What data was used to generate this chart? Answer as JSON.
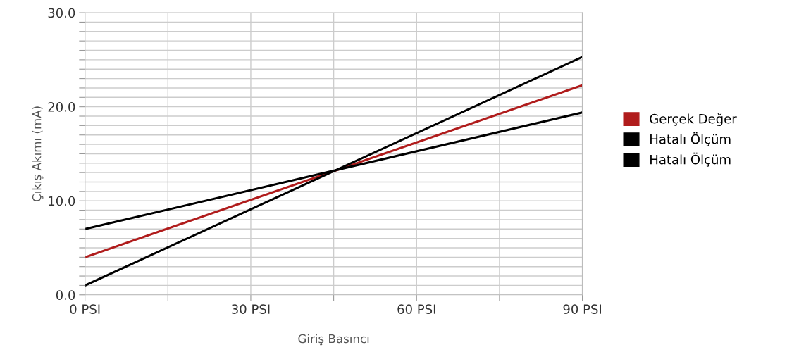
{
  "chart_data": {
    "type": "line",
    "xlabel": "Giriş Basıncı",
    "ylabel": "Çıkış Akımı (mA)",
    "x": [
      0,
      90
    ],
    "series": [
      {
        "name": "Gerçek Değer",
        "color": "#b01c1c",
        "values": [
          4.0,
          22.3
        ]
      },
      {
        "name": "Hatalı Ölçüm",
        "color": "#000000",
        "values": [
          7.0,
          19.4
        ]
      },
      {
        "name": "Hatalı Ölçüm",
        "color": "#000000",
        "values": [
          1.0,
          25.3
        ]
      }
    ],
    "xlim": [
      0,
      90
    ],
    "xticks": [
      {
        "value": 0,
        "label": "0 PSI"
      },
      {
        "value": 15,
        "label": null
      },
      {
        "value": 30,
        "label": "30 PSI"
      },
      {
        "value": 45,
        "label": null
      },
      {
        "value": 60,
        "label": "60 PSI"
      },
      {
        "value": 75,
        "label": null
      },
      {
        "value": 90,
        "label": "90 PSI"
      }
    ],
    "ylim": [
      0,
      30
    ],
    "yticks": [
      {
        "value": 0,
        "label": "0.0"
      },
      {
        "value": 1,
        "label": null
      },
      {
        "value": 2,
        "label": null
      },
      {
        "value": 3,
        "label": null
      },
      {
        "value": 4,
        "label": null
      },
      {
        "value": 5,
        "label": null
      },
      {
        "value": 6,
        "label": null
      },
      {
        "value": 7,
        "label": null
      },
      {
        "value": 8,
        "label": null
      },
      {
        "value": 9,
        "label": null
      },
      {
        "value": 10,
        "label": "10.0"
      },
      {
        "value": 11,
        "label": null
      },
      {
        "value": 12,
        "label": null
      },
      {
        "value": 13,
        "label": null
      },
      {
        "value": 14,
        "label": null
      },
      {
        "value": 15,
        "label": null
      },
      {
        "value": 16,
        "label": null
      },
      {
        "value": 17,
        "label": null
      },
      {
        "value": 18,
        "label": null
      },
      {
        "value": 19,
        "label": null
      },
      {
        "value": 20,
        "label": "20.0"
      },
      {
        "value": 21,
        "label": null
      },
      {
        "value": 22,
        "label": null
      },
      {
        "value": 23,
        "label": null
      },
      {
        "value": 24,
        "label": null
      },
      {
        "value": 25,
        "label": null
      },
      {
        "value": 26,
        "label": null
      },
      {
        "value": 27,
        "label": null
      },
      {
        "value": 28,
        "label": null
      },
      {
        "value": 29,
        "label": null
      },
      {
        "value": 30,
        "label": "30.0"
      }
    ],
    "grid": true,
    "legend": "right",
    "marker": "none",
    "line_style": "solid"
  }
}
